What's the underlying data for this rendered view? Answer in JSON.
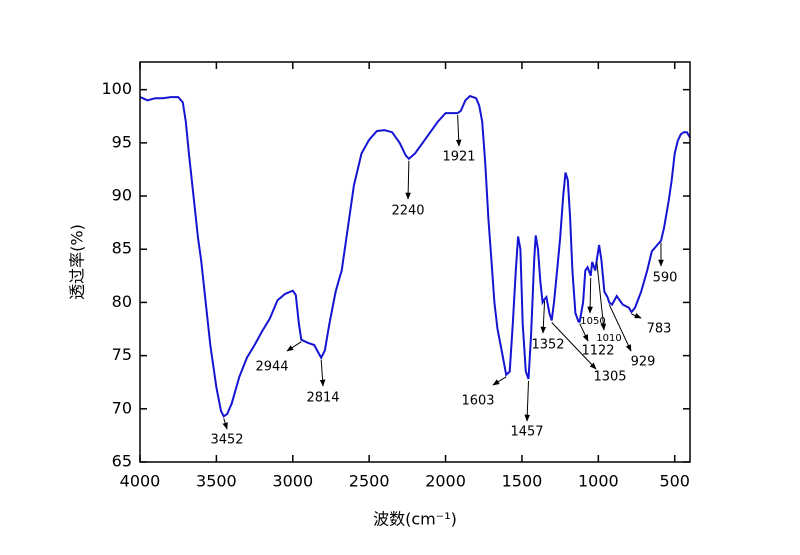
{
  "chart_data": {
    "type": "line",
    "xlabel": "波数(cm⁻¹)",
    "ylabel": "透过率(%)",
    "xlim": [
      4000,
      400
    ],
    "ylim": [
      65,
      102.6
    ],
    "xticks": [
      4000,
      3500,
      3000,
      2500,
      2000,
      1500,
      1000,
      500
    ],
    "yticks": [
      65,
      70,
      75,
      80,
      85,
      90,
      95,
      100
    ],
    "series": [
      {
        "color": "#1414d2",
        "x": [
          4000,
          3950,
          3900,
          3850,
          3800,
          3750,
          3720,
          3700,
          3680,
          3650,
          3620,
          3600,
          3570,
          3540,
          3500,
          3470,
          3452,
          3430,
          3400,
          3350,
          3300,
          3250,
          3200,
          3150,
          3100,
          3050,
          3000,
          2980,
          2960,
          2944,
          2900,
          2860,
          2830,
          2814,
          2790,
          2760,
          2720,
          2700,
          2680,
          2650,
          2600,
          2550,
          2500,
          2450,
          2400,
          2350,
          2300,
          2260,
          2240,
          2200,
          2150,
          2100,
          2050,
          2000,
          1950,
          1921,
          1900,
          1870,
          1840,
          1800,
          1780,
          1760,
          1740,
          1720,
          1700,
          1680,
          1660,
          1640,
          1620,
          1603,
          1580,
          1560,
          1540,
          1525,
          1510,
          1495,
          1475,
          1457,
          1440,
          1420,
          1410,
          1395,
          1380,
          1365,
          1352,
          1340,
          1320,
          1305,
          1290,
          1270,
          1250,
          1230,
          1215,
          1200,
          1185,
          1170,
          1150,
          1130,
          1122,
          1100,
          1085,
          1070,
          1050,
          1040,
          1020,
          1010,
          995,
          980,
          960,
          940,
          929,
          910,
          880,
          860,
          840,
          800,
          783,
          760,
          720,
          680,
          650,
          620,
          590,
          570,
          540,
          520,
          500,
          480,
          460,
          440,
          420,
          400
        ],
        "values": [
          99.3,
          99.0,
          99.2,
          99.2,
          99.3,
          99.3,
          98.8,
          97,
          94,
          90,
          86,
          84,
          80,
          76,
          72,
          69.8,
          69.3,
          69.5,
          70.5,
          73,
          74.8,
          76,
          77.3,
          78.5,
          80.2,
          80.8,
          81.1,
          80.7,
          78,
          76.5,
          76.2,
          76,
          75.2,
          74.8,
          75.5,
          78,
          81,
          82,
          83,
          86,
          91,
          94,
          95.3,
          96.1,
          96.2,
          96.0,
          95,
          93.8,
          93.5,
          94,
          95,
          96,
          97,
          97.8,
          97.8,
          97.8,
          98,
          99,
          99.4,
          99.2,
          98.5,
          97,
          93,
          88,
          84,
          80,
          77.5,
          76,
          74.5,
          73.2,
          73.5,
          78,
          83,
          86.2,
          85,
          78,
          73.5,
          72.8,
          77,
          84,
          86.3,
          85,
          82,
          80,
          80.3,
          80.5,
          79,
          78.3,
          80,
          83,
          86,
          90,
          92.2,
          91.5,
          88,
          83,
          79,
          78.2,
          78.2,
          80,
          83,
          83.3,
          82.5,
          83.8,
          83,
          84,
          85.4,
          84,
          81,
          80.5,
          80,
          79.8,
          80.6,
          80.2,
          79.8,
          79.5,
          79.1,
          79.5,
          81,
          83,
          84.8,
          85.3,
          85.8,
          87,
          89.5,
          91.5,
          94,
          95.2,
          95.8,
          96.0,
          96.0,
          95.5
        ]
      }
    ],
    "annotations": [
      3452,
      2944,
      2814,
      2240,
      1921,
      1603,
      1457,
      1352,
      1305,
      1122,
      1050,
      1010,
      929,
      783,
      590
    ]
  }
}
